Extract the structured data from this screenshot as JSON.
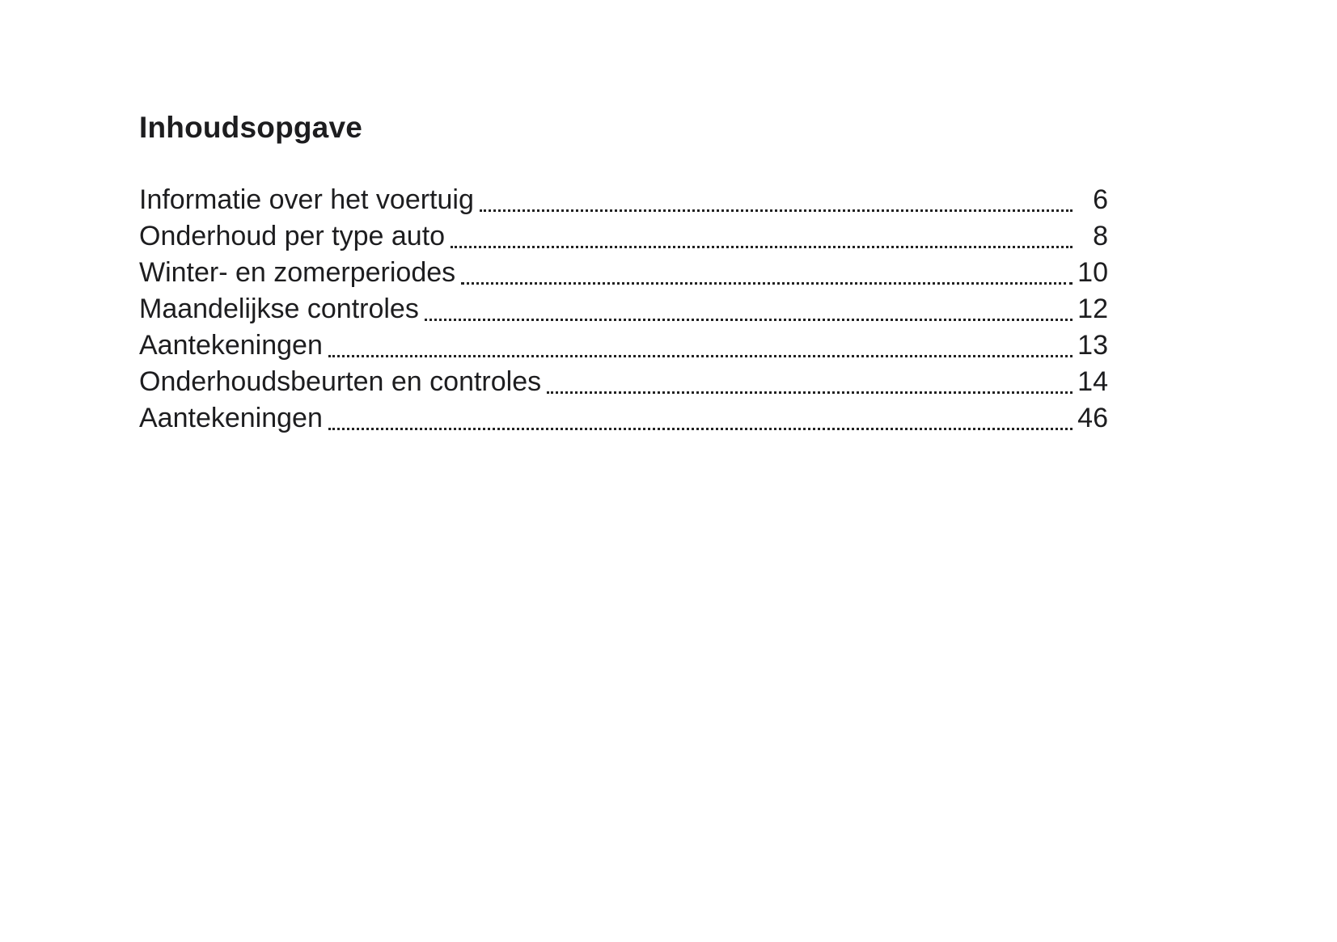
{
  "page": {
    "title": "Inhoudsopgave",
    "text_color": "#1d1d1f",
    "background_color": "#ffffff",
    "entries": [
      {
        "label": "Informatie over het voertuig",
        "page": "6"
      },
      {
        "label": "Onderhoud per type auto",
        "page": "8"
      },
      {
        "label": "Winter- en zomerperiodes",
        "page": "10"
      },
      {
        "label": "Maandelijkse controles",
        "page": "12"
      },
      {
        "label": "Aantekeningen",
        "page": "13"
      },
      {
        "label": "Onderhoudsbeurten en controles",
        "page": "14"
      },
      {
        "label": "Aantekeningen",
        "page": "46"
      }
    ]
  }
}
